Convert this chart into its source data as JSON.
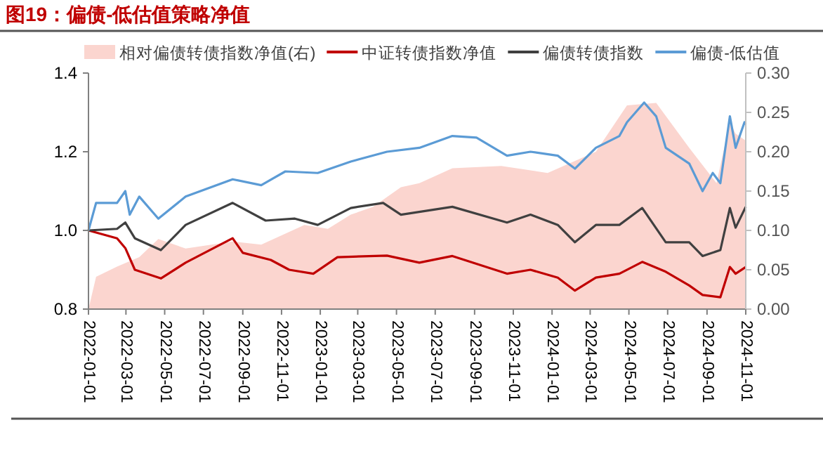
{
  "chart_data": {
    "type": "line",
    "title": "图19：偏债-低估值策略净值",
    "ylim": [
      0.8,
      1.4
    ],
    "yticks": [
      0.8,
      {
        "value": 1,
        "label": "1.0"
      },
      1.2,
      1.4
    ],
    "y2lim": [
      0,
      0.3
    ],
    "y2ticks": [
      {
        "value": 0,
        "label": "0.00"
      },
      0.05,
      {
        "value": 0.1,
        "label": "0.10"
      },
      0.15,
      {
        "value": 0.2,
        "label": "0.20"
      },
      0.25,
      {
        "value": 0.3,
        "label": "0.30"
      }
    ],
    "xlim": [
      "2022-01-01",
      "2024-11-01"
    ],
    "xticks": [
      "2022-01-01",
      "2022-03-01",
      "2022-05-01",
      "2022-07-01",
      "2022-09-01",
      "2022-11-01",
      "2023-01-01",
      "2023-03-01",
      "2023-05-01",
      "2023-07-01",
      "2023-09-01",
      "2023-11-01",
      "2024-01-01",
      "2024-03-01",
      "2024-05-01",
      "2024-07-01",
      "2024-09-01",
      "2024-11-01"
    ],
    "grid": false,
    "legend": "top",
    "series": [
      {
        "name": "相对偏债转债指数净值(右)",
        "type": "area",
        "axis": "y2",
        "color": "#fbd5cf",
        "x": [
          "2022-01-01",
          "2022-01-13",
          "2022-02-15",
          "2022-03-22",
          "2022-04-21",
          "2022-06-03",
          "2022-08-16",
          "2022-09-30",
          "2022-12-07",
          "2023-01-13",
          "2023-02-18",
          "2023-03-25",
          "2023-05-08",
          "2023-06-06",
          "2023-07-28",
          "2023-10-13",
          "2023-12-25",
          "2024-03-10",
          "2024-04-28",
          "2024-06-13",
          "2024-08-04",
          "2024-09-16",
          "2024-10-07",
          "2024-10-16",
          "2024-11-01"
        ],
        "values": [
          0,
          0.041,
          0.054,
          0.066,
          0.089,
          0.077,
          0.086,
          0.082,
          0.107,
          0.102,
          0.12,
          0.13,
          0.155,
          0.16,
          0.179,
          0.182,
          0.173,
          0.2,
          0.259,
          0.262,
          0.205,
          0.16,
          0.238,
          0.223,
          0.214
        ]
      },
      {
        "name": "中证转债指数净值",
        "color": "#c00000",
        "x": [
          "2022-01-01",
          "2022-02-15",
          "2022-02-28",
          "2022-03-15",
          "2022-04-25",
          "2022-06-03",
          "2022-08-16",
          "2022-09-01",
          "2022-10-15",
          "2022-11-13",
          "2022-12-21",
          "2023-01-28",
          "2023-04-16",
          "2023-06-06",
          "2023-07-28",
          "2023-10-22",
          "2023-11-28",
          "2024-01-10",
          "2024-02-06",
          "2024-03-10",
          "2024-04-16",
          "2024-05-22",
          "2024-06-28",
          "2024-08-04",
          "2024-08-25",
          "2024-09-22",
          "2024-10-07",
          "2024-10-16",
          "2024-11-01"
        ],
        "values": [
          1.0,
          0.98,
          0.955,
          0.9,
          0.878,
          0.918,
          0.98,
          0.943,
          0.925,
          0.9,
          0.89,
          0.932,
          0.936,
          0.918,
          0.935,
          0.89,
          0.9,
          0.88,
          0.847,
          0.88,
          0.89,
          0.92,
          0.895,
          0.86,
          0.836,
          0.83,
          0.907,
          0.89,
          0.907
        ]
      },
      {
        "name": "偏债转债指数",
        "color": "#404040",
        "x": [
          "2022-01-01",
          "2022-02-15",
          "2022-02-28",
          "2022-03-15",
          "2022-04-25",
          "2022-06-03",
          "2022-08-16",
          "2022-10-07",
          "2022-11-22",
          "2022-12-28",
          "2023-02-18",
          "2023-04-10",
          "2023-05-08",
          "2023-07-28",
          "2023-10-22",
          "2023-11-28",
          "2024-01-10",
          "2024-02-06",
          "2024-03-10",
          "2024-04-16",
          "2024-05-22",
          "2024-06-28",
          "2024-08-04",
          "2024-08-25",
          "2024-09-22",
          "2024-10-07",
          "2024-10-16",
          "2024-11-01"
        ],
        "values": [
          1.0,
          1.004,
          1.02,
          0.98,
          0.95,
          1.014,
          1.07,
          1.025,
          1.03,
          1.014,
          1.057,
          1.07,
          1.04,
          1.06,
          1.02,
          1.04,
          1.014,
          0.97,
          1.014,
          1.014,
          1.057,
          0.97,
          0.97,
          0.935,
          0.95,
          1.057,
          1.007,
          1.06
        ]
      },
      {
        "name": "偏债-低估值",
        "color": "#5b9bd5",
        "x": [
          "2022-01-01",
          "2022-01-13",
          "2022-02-15",
          "2022-02-28",
          "2022-03-07",
          "2022-03-22",
          "2022-04-21",
          "2022-06-03",
          "2022-08-16",
          "2022-09-30",
          "2022-11-07",
          "2022-12-28",
          "2023-02-18",
          "2023-04-16",
          "2023-06-06",
          "2023-07-28",
          "2023-09-04",
          "2023-10-22",
          "2023-11-28",
          "2024-01-10",
          "2024-02-06",
          "2024-03-10",
          "2024-04-16",
          "2024-04-28",
          "2024-05-25",
          "2024-06-13",
          "2024-06-28",
          "2024-08-04",
          "2024-08-25",
          "2024-09-10",
          "2024-09-22",
          "2024-10-07",
          "2024-10-16",
          "2024-10-30",
          "2024-11-01"
        ],
        "values": [
          1.0,
          1.07,
          1.07,
          1.1,
          1.04,
          1.086,
          1.03,
          1.086,
          1.13,
          1.115,
          1.15,
          1.146,
          1.175,
          1.2,
          1.21,
          1.24,
          1.236,
          1.19,
          1.2,
          1.19,
          1.157,
          1.21,
          1.24,
          1.275,
          1.325,
          1.29,
          1.21,
          1.17,
          1.1,
          1.146,
          1.12,
          1.29,
          1.21,
          1.275,
          1.27
        ]
      }
    ]
  }
}
